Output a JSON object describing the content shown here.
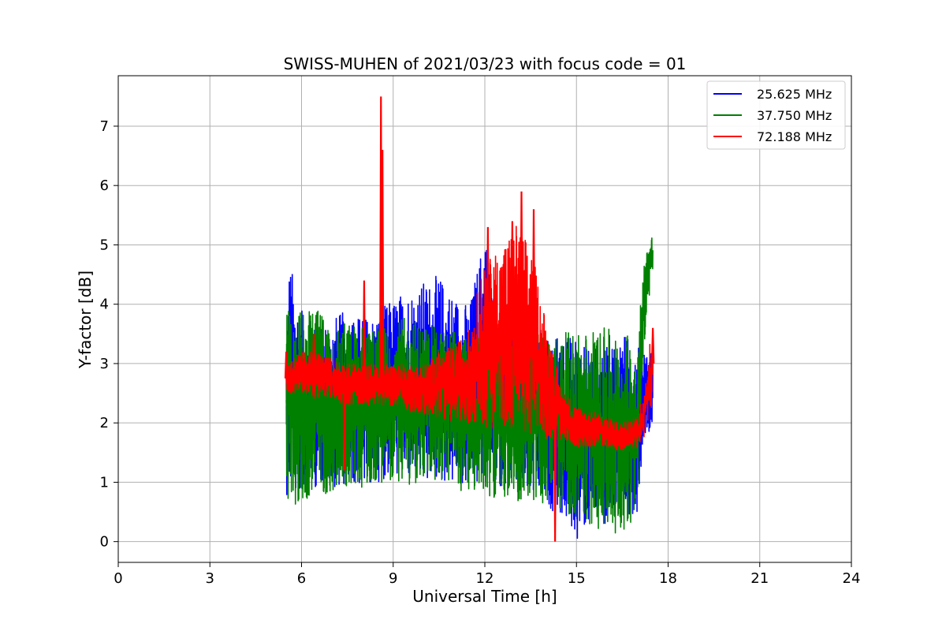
{
  "chart_data": {
    "type": "line",
    "title": "SWISS-MUHEN of 2021/03/23 with focus code = 01",
    "xlabel": "Universal Time [h]",
    "ylabel": "Y-factor [dB]",
    "xlim": [
      0,
      24
    ],
    "ylim": [
      -0.35,
      7.85
    ],
    "xticks": [
      0,
      3,
      6,
      9,
      12,
      15,
      18,
      21,
      24
    ],
    "yticks": [
      0,
      1,
      2,
      3,
      4,
      5,
      6,
      7
    ],
    "grid": true,
    "legend_position": "top-right",
    "series": [
      {
        "name": "25.625 MHz",
        "color": "#0000ff",
        "envelope": {
          "x": [
            5.5,
            5.6,
            6.0,
            6.5,
            7.0,
            7.5,
            8.0,
            8.5,
            9.0,
            9.5,
            10.0,
            10.5,
            11.0,
            11.5,
            12.0,
            12.5,
            13.0,
            13.5,
            14.0,
            14.5,
            15.0,
            15.5,
            16.0,
            16.5,
            17.0,
            17.2,
            17.5
          ],
          "low": [
            0.8,
            0.7,
            0.8,
            0.9,
            0.9,
            0.95,
            0.9,
            1.0,
            1.1,
            1.0,
            0.95,
            1.0,
            0.9,
            0.9,
            0.9,
            0.9,
            0.8,
            0.7,
            0.6,
            0.4,
            0.0,
            0.3,
            0.3,
            0.4,
            0.5,
            1.8,
            1.9
          ],
          "high": [
            3.5,
            4.8,
            3.9,
            3.7,
            3.8,
            3.9,
            3.8,
            3.9,
            4.1,
            4.3,
            4.4,
            4.5,
            4.2,
            4.0,
            5.3,
            4.0,
            3.8,
            3.8,
            3.5,
            3.5,
            3.5,
            3.4,
            3.5,
            3.5,
            3.4,
            3.3,
            3.2
          ]
        }
      },
      {
        "name": "37.750 MHz",
        "color": "#008000",
        "envelope": {
          "x": [
            5.5,
            6.0,
            6.5,
            7.0,
            7.5,
            8.0,
            8.5,
            9.0,
            9.5,
            10.0,
            10.5,
            11.0,
            11.5,
            12.0,
            12.5,
            13.0,
            13.5,
            14.0,
            14.5,
            15.0,
            15.5,
            16.0,
            16.5,
            17.0,
            17.2,
            17.4,
            17.5
          ],
          "low": [
            0.6,
            0.6,
            0.8,
            0.8,
            0.9,
            0.9,
            1.0,
            1.0,
            0.9,
            1.0,
            1.0,
            0.9,
            0.8,
            0.8,
            0.7,
            0.7,
            0.6,
            0.6,
            0.5,
            0.4,
            0.2,
            0.2,
            0.1,
            0.5,
            3.2,
            4.2,
            4.4
          ],
          "high": [
            4.0,
            3.9,
            3.9,
            3.8,
            3.7,
            3.7,
            3.6,
            3.7,
            3.8,
            3.7,
            3.6,
            3.6,
            3.5,
            3.5,
            3.5,
            3.5,
            3.5,
            3.6,
            3.5,
            3.6,
            3.6,
            3.6,
            3.5,
            3.5,
            4.7,
            5.2,
            5.2
          ]
        }
      },
      {
        "name": "72.188 MHz",
        "color": "#ff0000",
        "envelope": {
          "x": [
            5.5,
            6.0,
            6.5,
            7.0,
            7.5,
            8.0,
            8.5,
            9.0,
            9.5,
            10.0,
            10.5,
            11.0,
            11.5,
            12.0,
            12.5,
            13.0,
            13.5,
            14.0,
            14.5,
            15.0,
            15.5,
            16.0,
            16.5,
            17.0,
            17.2,
            17.4,
            17.5
          ],
          "low": [
            2.5,
            2.5,
            2.4,
            2.4,
            2.3,
            2.3,
            2.3,
            2.3,
            2.2,
            2.1,
            2.1,
            2.0,
            2.0,
            1.9,
            1.9,
            1.9,
            1.8,
            1.7,
            1.7,
            1.6,
            1.6,
            1.6,
            1.5,
            1.6,
            1.7,
            2.1,
            2.4
          ],
          "high": [
            3.0,
            3.2,
            3.2,
            3.1,
            3.0,
            3.0,
            3.0,
            3.0,
            3.0,
            3.0,
            3.2,
            3.3,
            3.6,
            4.8,
            5.0,
            5.4,
            5.0,
            3.8,
            2.6,
            2.3,
            2.2,
            2.1,
            2.0,
            2.1,
            2.6,
            3.4,
            3.6
          ]
        },
        "spikes": [
          {
            "x": 5.5,
            "y": 3.2
          },
          {
            "x": 6.4,
            "y": 3.5
          },
          {
            "x": 7.4,
            "y": 1.2
          },
          {
            "x": 8.05,
            "y": 4.4
          },
          {
            "x": 8.6,
            "y": 7.5
          },
          {
            "x": 8.65,
            "y": 6.6
          },
          {
            "x": 12.1,
            "y": 5.3
          },
          {
            "x": 12.9,
            "y": 5.4
          },
          {
            "x": 13.2,
            "y": 5.9
          },
          {
            "x": 13.6,
            "y": 5.6
          },
          {
            "x": 14.3,
            "y": 0.0
          },
          {
            "x": 17.5,
            "y": 3.6
          }
        ]
      }
    ]
  }
}
